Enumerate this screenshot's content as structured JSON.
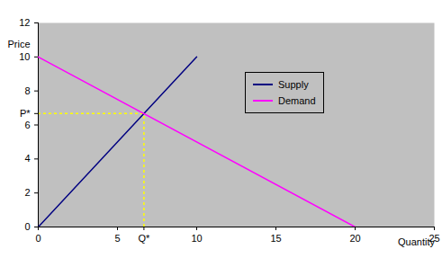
{
  "chart_data": {
    "type": "line",
    "xlabel": "Quantity",
    "ylabel": "Price",
    "series": [
      {
        "name": "Supply",
        "color": "#000080",
        "x": [
          0,
          10
        ],
        "values": [
          0,
          10
        ]
      },
      {
        "name": "Demand",
        "color": "#ff00ff",
        "x": [
          0,
          20
        ],
        "values": [
          10,
          0
        ]
      }
    ],
    "equilibrium": {
      "x": 6.67,
      "y": 6.67,
      "color": "#ffff00",
      "line_style": "dashed"
    },
    "xlim": [
      0,
      25
    ],
    "xticks": [
      0,
      5,
      {
        "value": 6.67,
        "label": "Q*"
      },
      10,
      15,
      20,
      25
    ],
    "ylim": [
      0,
      12
    ],
    "yticks": [
      0,
      2,
      4,
      {
        "value": 6.67,
        "label": "P*"
      },
      6,
      8,
      10,
      12
    ],
    "grid": false,
    "legend": "right"
  }
}
